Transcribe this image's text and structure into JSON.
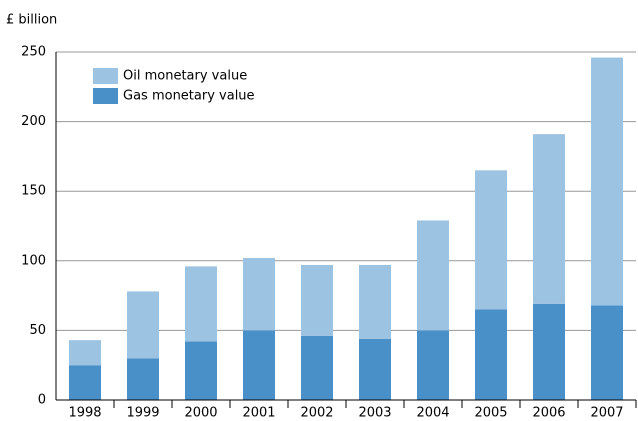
{
  "chart_data": {
    "type": "stacked_bar",
    "y_label": "£ billion",
    "categories": [
      "1998",
      "1999",
      "2000",
      "2001",
      "2002",
      "2003",
      "2004",
      "2005",
      "2006",
      "2007"
    ],
    "series": [
      {
        "name": "Gas monetary value",
        "color": "#4a90c8",
        "values": [
          25,
          30,
          42,
          50,
          46,
          44,
          50,
          65,
          69,
          68
        ]
      },
      {
        "name": "Oil monetary value",
        "color": "#9dc3e2",
        "values": [
          18,
          48,
          54,
          52,
          51,
          53,
          79,
          100,
          122,
          178
        ]
      }
    ],
    "ylim": [
      0,
      250
    ],
    "yticks": [
      0,
      50,
      100,
      150,
      200,
      250
    ],
    "grid": true,
    "legend": "top-left"
  }
}
